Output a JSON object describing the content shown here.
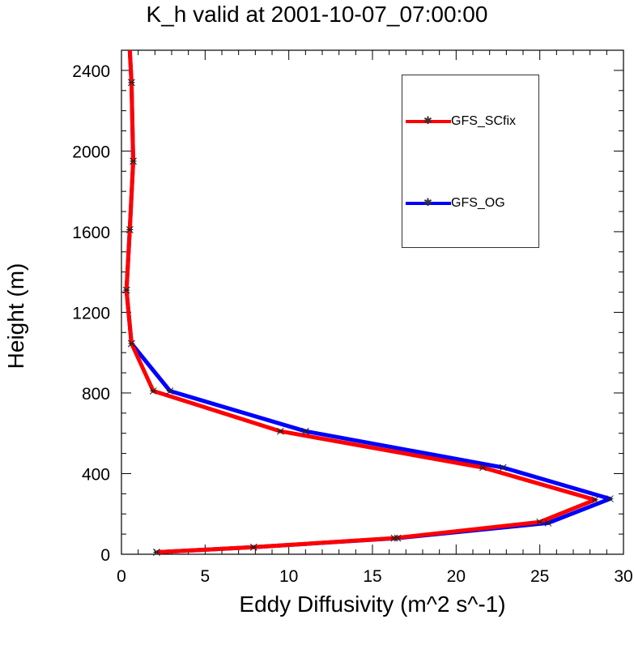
{
  "chart_data": {
    "type": "line",
    "title": "K_h valid at 2001-10-07_07:00:00",
    "xlabel": "Eddy Diffusivity (m^2 s^-1)",
    "ylabel": "Height (m)",
    "xlim": [
      0,
      30
    ],
    "ylim": [
      0,
      2500
    ],
    "xticks": [
      0,
      5,
      10,
      15,
      20,
      25,
      30
    ],
    "yticks": [
      0,
      400,
      800,
      1200,
      1600,
      2000,
      2400
    ],
    "grid": false,
    "legend_position": "top-right",
    "series": [
      {
        "name": "GFS_SCfix",
        "color": "#ff0000",
        "points": [
          {
            "x": 2.1,
            "y": 10
          },
          {
            "x": 7.9,
            "y": 35
          },
          {
            "x": 16.3,
            "y": 80
          },
          {
            "x": 25.0,
            "y": 160
          },
          {
            "x": 28.3,
            "y": 270
          },
          {
            "x": 21.6,
            "y": 430
          },
          {
            "x": 9.5,
            "y": 610
          },
          {
            "x": 1.9,
            "y": 810
          },
          {
            "x": 0.6,
            "y": 1045
          },
          {
            "x": 0.3,
            "y": 1310
          },
          {
            "x": 0.5,
            "y": 1610
          },
          {
            "x": 0.7,
            "y": 1950
          },
          {
            "x": 0.6,
            "y": 2340
          },
          {
            "x": 0.5,
            "y": 2500
          }
        ]
      },
      {
        "name": "GFS_OG",
        "color": "#0000ff",
        "points": [
          {
            "x": 2.1,
            "y": 10
          },
          {
            "x": 7.9,
            "y": 35
          },
          {
            "x": 16.5,
            "y": 80
          },
          {
            "x": 25.5,
            "y": 155
          },
          {
            "x": 29.2,
            "y": 275
          },
          {
            "x": 22.8,
            "y": 430
          },
          {
            "x": 11.0,
            "y": 610
          },
          {
            "x": 2.9,
            "y": 810
          },
          {
            "x": 0.6,
            "y": 1045
          },
          {
            "x": 0.3,
            "y": 1310
          },
          {
            "x": 0.5,
            "y": 1610
          },
          {
            "x": 0.7,
            "y": 1950
          },
          {
            "x": 0.6,
            "y": 2340
          },
          {
            "x": 0.5,
            "y": 2500
          }
        ]
      }
    ]
  }
}
